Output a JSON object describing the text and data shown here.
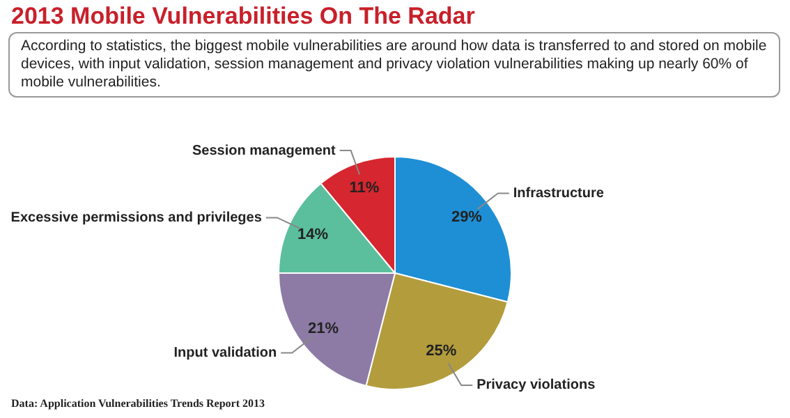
{
  "chart_data": {
    "type": "pie",
    "title": "2013 Mobile Vulnerabilities On The Radar",
    "subtitle": "According to statistics, the biggest mobile vulnerabilities are around how data is transferred to and stored on mobile devices, with input validation, session management and privacy violation vulnerabilities making up nearly 60% of mobile vulnerabilities.",
    "categories": [
      "Infrastructure",
      "Privacy violations",
      "Input validation",
      "Excessive permissions and privileges",
      "Session management"
    ],
    "values": [
      29,
      25,
      21,
      14,
      11
    ],
    "value_labels": [
      "29%",
      "25%",
      "21%",
      "14%",
      "11%"
    ],
    "colors": [
      "#1e8fd5",
      "#b39c3c",
      "#8d7ba6",
      "#5bbf9d",
      "#d6262f"
    ],
    "legend": false,
    "annotations": [
      "Data: Application Vulnerabilities Trends Report 2013"
    ]
  }
}
